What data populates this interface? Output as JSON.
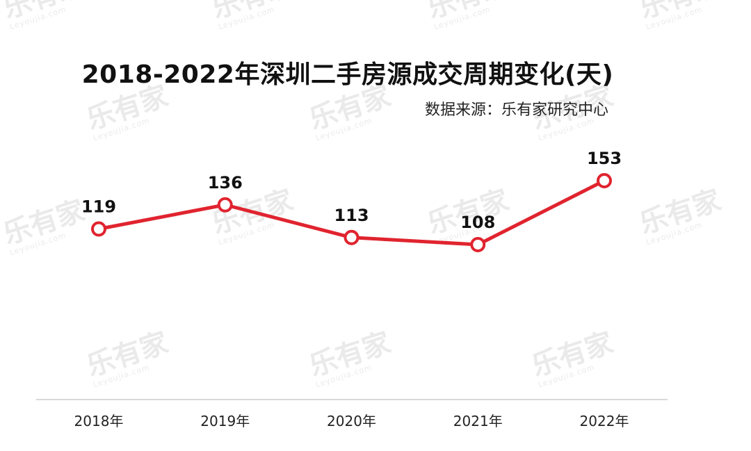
{
  "watermark": {
    "logo_text": "乐有家",
    "logo_url": "Leyoujia.com"
  },
  "chart_data": {
    "type": "line",
    "title": "2018-2022年深圳二手房源成交周期变化(天)",
    "source": "数据来源：乐有家研究中心",
    "categories": [
      "2018年",
      "2019年",
      "2020年",
      "2021年",
      "2022年"
    ],
    "series": [
      {
        "values": [
          119,
          136,
          113,
          108,
          153
        ]
      }
    ],
    "ylim": [
      0,
      180
    ],
    "grid": false,
    "legend": false,
    "colors": {
      "line": "#e0242f",
      "marker_fill": "#ffffff",
      "axis": "#cccccc",
      "label": "#111111"
    }
  }
}
